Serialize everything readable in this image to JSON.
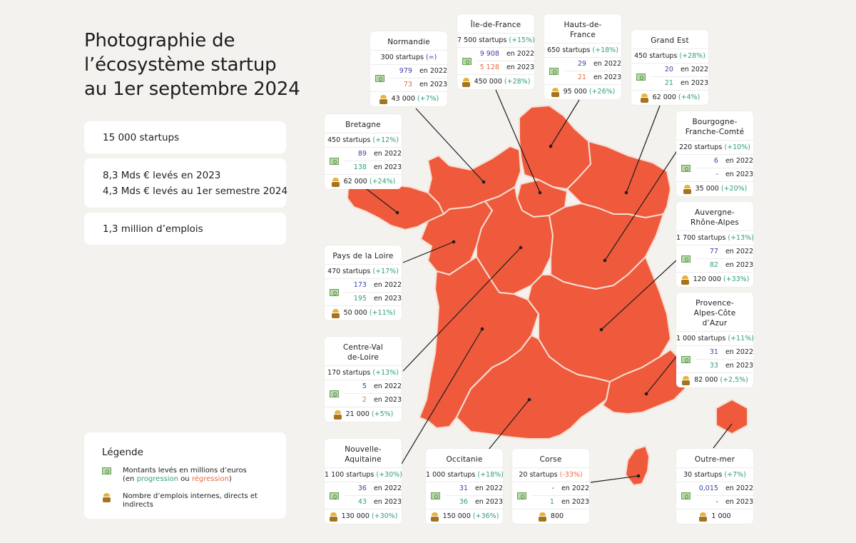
{
  "title_lines": [
    "Photographie de",
    "l’écosystème startup",
    "au 1er septembre 2024"
  ],
  "stats": {
    "startups": "15 000 startups",
    "raised_2023": "8,3 Mds € levés en 2023",
    "raised_2024": "4,3 Mds € levés au 1er semestre 2024",
    "jobs": "1,3 million d’emplois"
  },
  "legend": {
    "title": "Légende",
    "money_line1": "Montants levés en millions d’euros",
    "money_open": "(en ",
    "progression": "progression",
    "or": " ou ",
    "regression": "régression",
    "money_close": ")",
    "jobs_label": "Nombre d’emplois internes, directs et indirects"
  },
  "colors": {
    "map": "#ef5a3c",
    "map_border": "#f6ded4",
    "progression": "#2f9e7a",
    "regression": "#ea6a3c",
    "prev_year": "#3f3faa"
  },
  "icons": {
    "money": "banknote-icon",
    "jobs": "worker-icon"
  },
  "regions": [
    {
      "key": "normandie",
      "name": [
        "Normandie"
      ],
      "startups": "300 startups",
      "delta": "(=)",
      "delta_color": "#3f3faa",
      "v2022": "979",
      "c2022": "#3f3faa",
      "v2023": "73",
      "c2023": "#ea6a3c",
      "y2022": "en 2022",
      "y2023": "en 2023",
      "jobs": "43 000",
      "jobs_delta": "(+7%)"
    },
    {
      "key": "idf",
      "name": [
        "Île-de-France"
      ],
      "startups": "7 500 startups",
      "delta": "(+15%)",
      "delta_color": "#2f9e7a",
      "v2022": "9 908",
      "c2022": "#3f3faa",
      "v2023": "5 128",
      "c2023": "#ea6a3c",
      "y2022": "en 2022",
      "y2023": "en 2023",
      "jobs": "450 000",
      "jobs_delta": "(+28%)"
    },
    {
      "key": "hdf",
      "name": [
        "Hauts-de-",
        "France"
      ],
      "startups": "650 startups",
      "delta": "(+18%)",
      "delta_color": "#2f9e7a",
      "v2022": "29",
      "c2022": "#3f3faa",
      "v2023": "21",
      "c2023": "#ea6a3c",
      "y2022": "en 2022",
      "y2023": "en 2023",
      "jobs": "95 000",
      "jobs_delta": "(+26%)"
    },
    {
      "key": "grandest",
      "name": [
        "Grand Est"
      ],
      "startups": "450 startups",
      "delta": "(+28%)",
      "delta_color": "#2f9e7a",
      "v2022": "20",
      "c2022": "#3f3faa",
      "v2023": "21",
      "c2023": "#2f9e7a",
      "y2022": "en 2022",
      "y2023": "en 2023",
      "jobs": "62 000",
      "jobs_delta": "(+4%)"
    },
    {
      "key": "bretagne",
      "name": [
        "Bretagne"
      ],
      "startups": "450 startups",
      "delta": "(+12%)",
      "delta_color": "#2f9e7a",
      "v2022": "89",
      "c2022": "#3f3faa",
      "v2023": "138",
      "c2023": "#2f9e7a",
      "y2022": "en 2022",
      "y2023": "en 2023",
      "jobs": "62 000",
      "jobs_delta": "(+24%)"
    },
    {
      "key": "bfc",
      "name": [
        "Bourgogne-",
        "Franche-Comté"
      ],
      "startups": "220 startups",
      "delta": "(+10%)",
      "delta_color": "#2f9e7a",
      "v2022": "6",
      "c2022": "#3f3faa",
      "v2023": "-",
      "c2023": "#3f3faa",
      "y2022": "en 2022",
      "y2023": "en 2023",
      "jobs": "35 000",
      "jobs_delta": "(+20%)"
    },
    {
      "key": "ara",
      "name": [
        "Auvergne-",
        "Rhône-Alpes"
      ],
      "startups": "1 700 startups",
      "delta": "(+13%)",
      "delta_color": "#2f9e7a",
      "v2022": "77",
      "c2022": "#3f3faa",
      "v2023": "82",
      "c2023": "#2f9e7a",
      "y2022": "en 2022",
      "y2023": "en 2023",
      "jobs": "120 000",
      "jobs_delta": "(+33%)"
    },
    {
      "key": "pdl",
      "name": [
        "Pays de la Loire"
      ],
      "startups": "470 startups",
      "delta": "(+17%)",
      "delta_color": "#2f9e7a",
      "v2022": "173",
      "c2022": "#3f3faa",
      "v2023": "195",
      "c2023": "#2f9e7a",
      "y2022": "en 2022",
      "y2023": "en 2023",
      "jobs": "50 000",
      "jobs_delta": "(+11%)"
    },
    {
      "key": "paca",
      "name": [
        "Provence-",
        "Alpes-Côte",
        "d’Azur"
      ],
      "startups": "1 000 startups",
      "delta": "(+11%)",
      "delta_color": "#2f9e7a",
      "v2022": "31",
      "c2022": "#3f3faa",
      "v2023": "33",
      "c2023": "#2f9e7a",
      "y2022": "en 2022",
      "y2023": "en 2023",
      "jobs": "82 000",
      "jobs_delta": "(+2,5%)"
    },
    {
      "key": "cvl",
      "name": [
        "Centre-Val",
        "de-Loire"
      ],
      "startups": "170 startups",
      "delta": "(+13%)",
      "delta_color": "#2f9e7a",
      "v2022": "5",
      "c2022": "#3f3faa",
      "v2023": "2",
      "c2023": "#ea6a3c",
      "y2022": "en 2022",
      "y2023": "en 2023",
      "jobs": "21 000",
      "jobs_delta": "(+5%)"
    },
    {
      "key": "na",
      "name": [
        "Nouvelle-",
        "Aquitaine"
      ],
      "startups": "1 100 startups",
      "delta": "(+30%)",
      "delta_color": "#2f9e7a",
      "v2022": "36",
      "c2022": "#3f3faa",
      "v2023": "43",
      "c2023": "#2f9e7a",
      "y2022": "en 2022",
      "y2023": "en 2023",
      "jobs": "130 000",
      "jobs_delta": "(+30%)"
    },
    {
      "key": "occitanie",
      "name": [
        "Occitanie"
      ],
      "startups": "1 000 startups",
      "delta": "(+18%)",
      "delta_color": "#2f9e7a",
      "v2022": "31",
      "c2022": "#3f3faa",
      "v2023": "36",
      "c2023": "#2f9e7a",
      "y2022": "en 2022",
      "y2023": "en 2023",
      "jobs": "150 000",
      "jobs_delta": "(+36%)"
    },
    {
      "key": "corse",
      "name": [
        "Corse"
      ],
      "startups": "20 startups",
      "delta": "(-33%)",
      "delta_color": "#ea6a3c",
      "v2022": "-",
      "c2022": "#3f3faa",
      "v2023": "1",
      "c2023": "#2f9e7a",
      "y2022": "en 2022",
      "y2023": "en 2023",
      "jobs": "800",
      "jobs_delta": ""
    },
    {
      "key": "om",
      "name": [
        "Outre-mer"
      ],
      "startups": "30 startups",
      "delta": "(+7%)",
      "delta_color": "#2f9e7a",
      "v2022": "0,015",
      "c2022": "#3f3faa",
      "v2023": "-",
      "c2023": "#3f3faa",
      "y2022": "en 2022",
      "y2023": "en 2023",
      "jobs": "1 000",
      "jobs_delta": ""
    }
  ]
}
